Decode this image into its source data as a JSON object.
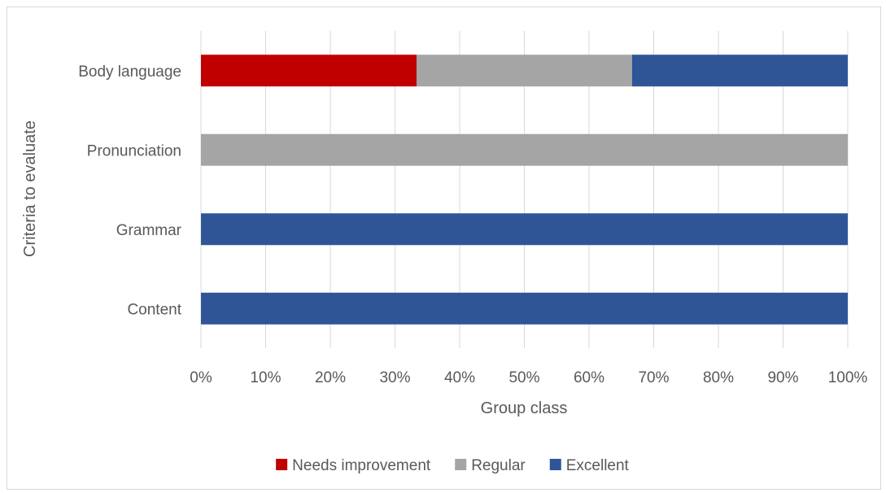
{
  "chart_data": {
    "type": "bar",
    "orientation": "horizontal",
    "stacked": "percent",
    "categories": [
      "Content",
      "Grammar",
      "Pronunciation",
      "Body language"
    ],
    "series": [
      {
        "name": "Needs improvement",
        "color": "#c00000",
        "values": [
          0,
          0,
          0,
          33.33
        ]
      },
      {
        "name": "Regular",
        "color": "#a5a5a5",
        "values": [
          0,
          0,
          100,
          33.33
        ]
      },
      {
        "name": "Excellent",
        "color": "#2f5597",
        "values": [
          100,
          100,
          0,
          33.34
        ]
      }
    ],
    "title": "",
    "xlabel": "Group class",
    "ylabel": "Criteria to evaluate",
    "xlim": [
      0,
      100
    ],
    "x_ticks": [
      "0%",
      "10%",
      "20%",
      "30%",
      "40%",
      "50%",
      "60%",
      "70%",
      "80%",
      "90%",
      "100%"
    ],
    "grid": "vertical",
    "legend_position": "bottom"
  }
}
